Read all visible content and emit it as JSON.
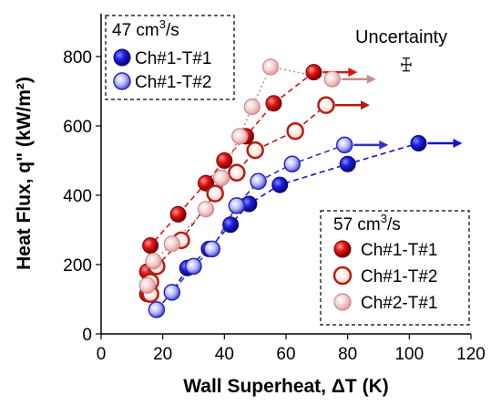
{
  "chart_data": {
    "type": "scatter",
    "xlabel": "Wall Superheat, ΔT (K)",
    "ylabel": "Heat Flux, q\" (kW/m²)",
    "xlim": [
      0,
      120
    ],
    "ylim": [
      0,
      900
    ],
    "xticks": [
      0,
      20,
      40,
      60,
      80,
      100,
      120
    ],
    "yticks": [
      0,
      200,
      400,
      600,
      800
    ],
    "xtick_labels": [
      "0",
      "20",
      "40",
      "60",
      "80",
      "100",
      "120"
    ],
    "ytick_labels": [
      "0",
      "200",
      "400",
      "600",
      "800"
    ],
    "annotation": "Uncertainty",
    "uncertainty_marker": {
      "x": 99,
      "y": 777
    },
    "legends": [
      {
        "title_main": "47 cm",
        "title_sup": "3",
        "title_tail": "/s",
        "position": "top-left",
        "entries": [
          "Ch#1-T#1",
          "Ch#1-T#2"
        ]
      },
      {
        "title_main": "57 cm",
        "title_sup": "3",
        "title_tail": "/s",
        "position": "bottom-right",
        "entries": [
          "Ch#1-T#1",
          "Ch#1-T#2",
          "Ch#2-T#1"
        ]
      }
    ],
    "series": [
      {
        "name": "Ch#1-T#1",
        "legend": 0,
        "style": "solid",
        "color": "#1414c8",
        "line": "dashed",
        "x": [
          18,
          23,
          28,
          35,
          42,
          48,
          58,
          80,
          103
        ],
        "y": [
          70,
          120,
          190,
          245,
          315,
          375,
          430,
          490,
          550
        ],
        "arrow_x": 103
      },
      {
        "name": "Ch#1-T#2",
        "legend": 0,
        "style": "light",
        "color": "#3232c8",
        "line": "dashed",
        "x": [
          18,
          23,
          30,
          36,
          44,
          51,
          62,
          79
        ],
        "y": [
          70,
          120,
          195,
          245,
          370,
          440,
          490,
          545
        ],
        "arrow_x": 79
      },
      {
        "name": "Ch#1-T#1",
        "legend": 1,
        "style": "solid",
        "color": "#dc1414",
        "line": "dashed",
        "x": [
          15,
          15,
          16,
          25,
          34,
          40,
          47,
          56,
          69
        ],
        "y": [
          115,
          180,
          255,
          345,
          435,
          500,
          570,
          665,
          755
        ],
        "arrow_x": 69
      },
      {
        "name": "Ch#1-T#2",
        "legend": 1,
        "style": "ring",
        "color": "#b41e14",
        "line": "dashed",
        "x": [
          16,
          16,
          18,
          26,
          37,
          44,
          50,
          63,
          73
        ],
        "y": [
          115,
          150,
          195,
          270,
          405,
          465,
          530,
          585,
          660
        ],
        "arrow_x": 73
      },
      {
        "name": "Ch#2-T#1",
        "legend": 1,
        "style": "pale",
        "color": "#c88c8c",
        "line": "dotted",
        "x": [
          15,
          17,
          23,
          34,
          39,
          45,
          49,
          55,
          75
        ],
        "y": [
          140,
          210,
          260,
          360,
          450,
          570,
          655,
          770,
          735
        ],
        "arrow_x": 75
      }
    ]
  }
}
